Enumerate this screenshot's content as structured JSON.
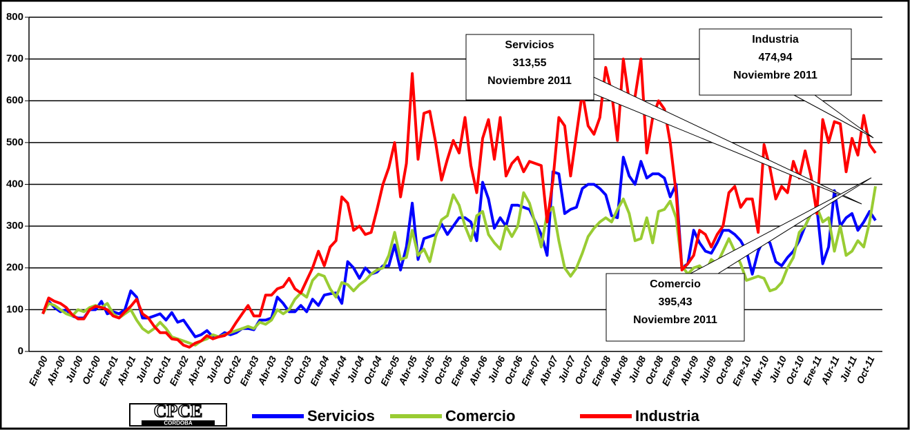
{
  "chart_data": {
    "type": "line",
    "categories": [
      "Ene-00",
      null,
      null,
      "Abr-00",
      null,
      null,
      "Jul-00",
      null,
      null,
      "Oct-00",
      null,
      null,
      "Ene-01",
      null,
      null,
      "Abr-01",
      null,
      null,
      "Jul-01",
      null,
      null,
      "Oct-01",
      null,
      null,
      "Ene-02",
      null,
      null,
      "Abr-02",
      null,
      null,
      "Jul-02",
      null,
      null,
      "Oct-02",
      null,
      null,
      "Ene-03",
      null,
      null,
      "Abr-03",
      null,
      null,
      "Jul-03",
      null,
      null,
      "Oct-03",
      null,
      null,
      "Ene-04",
      null,
      null,
      "Abr-04",
      null,
      null,
      "Jul-04",
      null,
      null,
      "Oct-04",
      null,
      null,
      "Ene-05",
      null,
      null,
      "Abr-05",
      null,
      null,
      "Jul-05",
      null,
      null,
      "Oct-05",
      null,
      null,
      "Ene-06",
      null,
      null,
      "Abr-06",
      null,
      null,
      "Jul-06",
      null,
      null,
      "Oct-06",
      null,
      null,
      "Ene-07",
      null,
      null,
      "Abr-07",
      null,
      null,
      "Jul-07",
      null,
      null,
      "Oct-07",
      null,
      null,
      "Ene-08",
      null,
      null,
      "Abr-08",
      null,
      null,
      "Jul-08",
      null,
      null,
      "Oct-08",
      null,
      null,
      "Ene-09",
      null,
      null,
      "Abr-09",
      null,
      null,
      "Jul-09",
      null,
      null,
      "Oct-09",
      null,
      null,
      "Ene-10",
      null,
      null,
      "Abr-10",
      null,
      null,
      "Jul-10",
      null,
      null,
      "Oct-10",
      null,
      null,
      "Ene-11",
      null,
      null,
      "Abr-11",
      null,
      null,
      "Jul-11",
      null,
      null,
      "Oct-11",
      null
    ],
    "series": [
      {
        "name": "Servicios",
        "color": "#0000ff",
        "values": [
          90,
          120,
          105,
          95,
          100,
          85,
          80,
          80,
          100,
          100,
          120,
          90,
          95,
          90,
          100,
          145,
          130,
          80,
          80,
          85,
          90,
          75,
          93,
          70,
          75,
          55,
          35,
          40,
          50,
          35,
          35,
          45,
          40,
          45,
          55,
          55,
          52,
          75,
          75,
          80,
          130,
          115,
          95,
          95,
          110,
          95,
          125,
          110,
          135,
          138,
          140,
          115,
          215,
          200,
          175,
          200,
          185,
          190,
          205,
          205,
          255,
          195,
          250,
          355,
          220,
          270,
          275,
          280,
          305,
          280,
          300,
          320,
          320,
          310,
          265,
          405,
          365,
          295,
          320,
          300,
          350,
          350,
          345,
          340,
          310,
          280,
          230,
          430,
          425,
          330,
          340,
          345,
          390,
          400,
          400,
          390,
          375,
          325,
          320,
          465,
          420,
          400,
          455,
          415,
          425,
          425,
          415,
          370,
          400,
          200,
          210,
          290,
          260,
          240,
          235,
          260,
          290,
          290,
          280,
          265,
          240,
          185,
          240,
          270,
          260,
          215,
          205,
          225,
          240,
          265,
          300,
          330,
          345,
          210,
          250,
          385,
          300,
          320,
          330,
          290,
          310,
          335,
          313.55
        ]
      },
      {
        "name": "Comercio",
        "color": "#99cc33",
        "values": [
          90,
          115,
          110,
          100,
          90,
          85,
          100,
          95,
          105,
          110,
          105,
          115,
          90,
          80,
          90,
          100,
          75,
          55,
          45,
          55,
          70,
          55,
          35,
          30,
          25,
          20,
          15,
          25,
          30,
          40,
          35,
          40,
          45,
          50,
          55,
          60,
          55,
          70,
          65,
          75,
          100,
          90,
          100,
          125,
          140,
          130,
          170,
          185,
          180,
          150,
          130,
          165,
          160,
          145,
          160,
          170,
          185,
          195,
          200,
          230,
          285,
          220,
          225,
          290,
          230,
          245,
          215,
          275,
          315,
          325,
          375,
          350,
          300,
          265,
          325,
          335,
          280,
          260,
          245,
          300,
          275,
          300,
          380,
          355,
          305,
          250,
          330,
          345,
          265,
          200,
          180,
          200,
          235,
          275,
          295,
          310,
          320,
          310,
          340,
          365,
          330,
          265,
          270,
          320,
          260,
          335,
          340,
          360,
          320,
          205,
          185,
          200,
          205,
          190,
          220,
          210,
          240,
          270,
          240,
          210,
          170,
          175,
          180,
          175,
          145,
          150,
          165,
          200,
          225,
          285,
          300,
          330,
          345,
          310,
          320,
          240,
          300,
          230,
          240,
          265,
          250,
          310,
          395.43
        ]
      },
      {
        "name": "Industria",
        "color": "#ff0000",
        "values": [
          90,
          128,
          120,
          115,
          105,
          88,
          78,
          78,
          100,
          108,
          105,
          100,
          85,
          80,
          95,
          108,
          125,
          90,
          80,
          60,
          45,
          45,
          30,
          28,
          15,
          10,
          20,
          25,
          38,
          30,
          35,
          38,
          48,
          70,
          90,
          110,
          85,
          85,
          135,
          135,
          150,
          155,
          175,
          150,
          140,
          170,
          200,
          240,
          205,
          250,
          265,
          370,
          355,
          290,
          300,
          280,
          285,
          340,
          400,
          440,
          500,
          370,
          450,
          665,
          460,
          570,
          575,
          500,
          410,
          460,
          505,
          475,
          560,
          445,
          380,
          510,
          555,
          460,
          560,
          420,
          450,
          465,
          430,
          455,
          450,
          445,
          310,
          410,
          560,
          540,
          420,
          520,
          620,
          540,
          520,
          560,
          680,
          620,
          505,
          700,
          600,
          610,
          700,
          475,
          560,
          600,
          580,
          500,
          380,
          195,
          210,
          230,
          290,
          280,
          250,
          280,
          300,
          380,
          395,
          345,
          365,
          365,
          285,
          495,
          440,
          365,
          395,
          380,
          455,
          415,
          480,
          420,
          330,
          555,
          500,
          550,
          545,
          430,
          510,
          470,
          565,
          495,
          475
        ]
      }
    ],
    "ylim": [
      0,
      800
    ],
    "yticks": [
      0,
      100,
      200,
      300,
      400,
      500,
      600,
      700,
      800
    ],
    "grid": true,
    "annotations": [
      [
        "Servicios",
        "313,55",
        "Noviembre 2011"
      ],
      [
        "Industria",
        "474,94",
        "Noviembre 2011"
      ],
      [
        "Comercio",
        "395,43",
        "Noviembre 2011"
      ]
    ],
    "logo": [
      "CPCE",
      "CORDOBA"
    ]
  }
}
